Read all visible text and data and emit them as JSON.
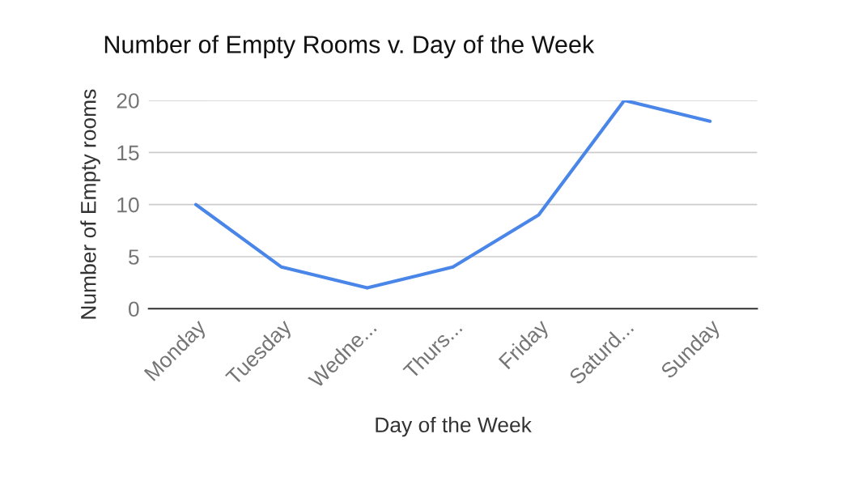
{
  "chart_data": {
    "type": "line",
    "title": "Number of Empty Rooms v. Day of the Week",
    "xlabel": "Day of the Week",
    "ylabel": "Number of Empty rooms",
    "categories": [
      "Monday",
      "Tuesday",
      "Wedne...",
      "Thurs...",
      "Friday",
      "Saturd...",
      "Sunday"
    ],
    "series": [
      {
        "color": "#4a86e8",
        "values": [
          10,
          4,
          2,
          4,
          9,
          20,
          18
        ]
      }
    ],
    "ylim": [
      0,
      20
    ],
    "yticks": [
      0,
      5,
      10,
      15,
      20
    ],
    "grid": "y",
    "marker": "none",
    "line_style": "solid"
  }
}
